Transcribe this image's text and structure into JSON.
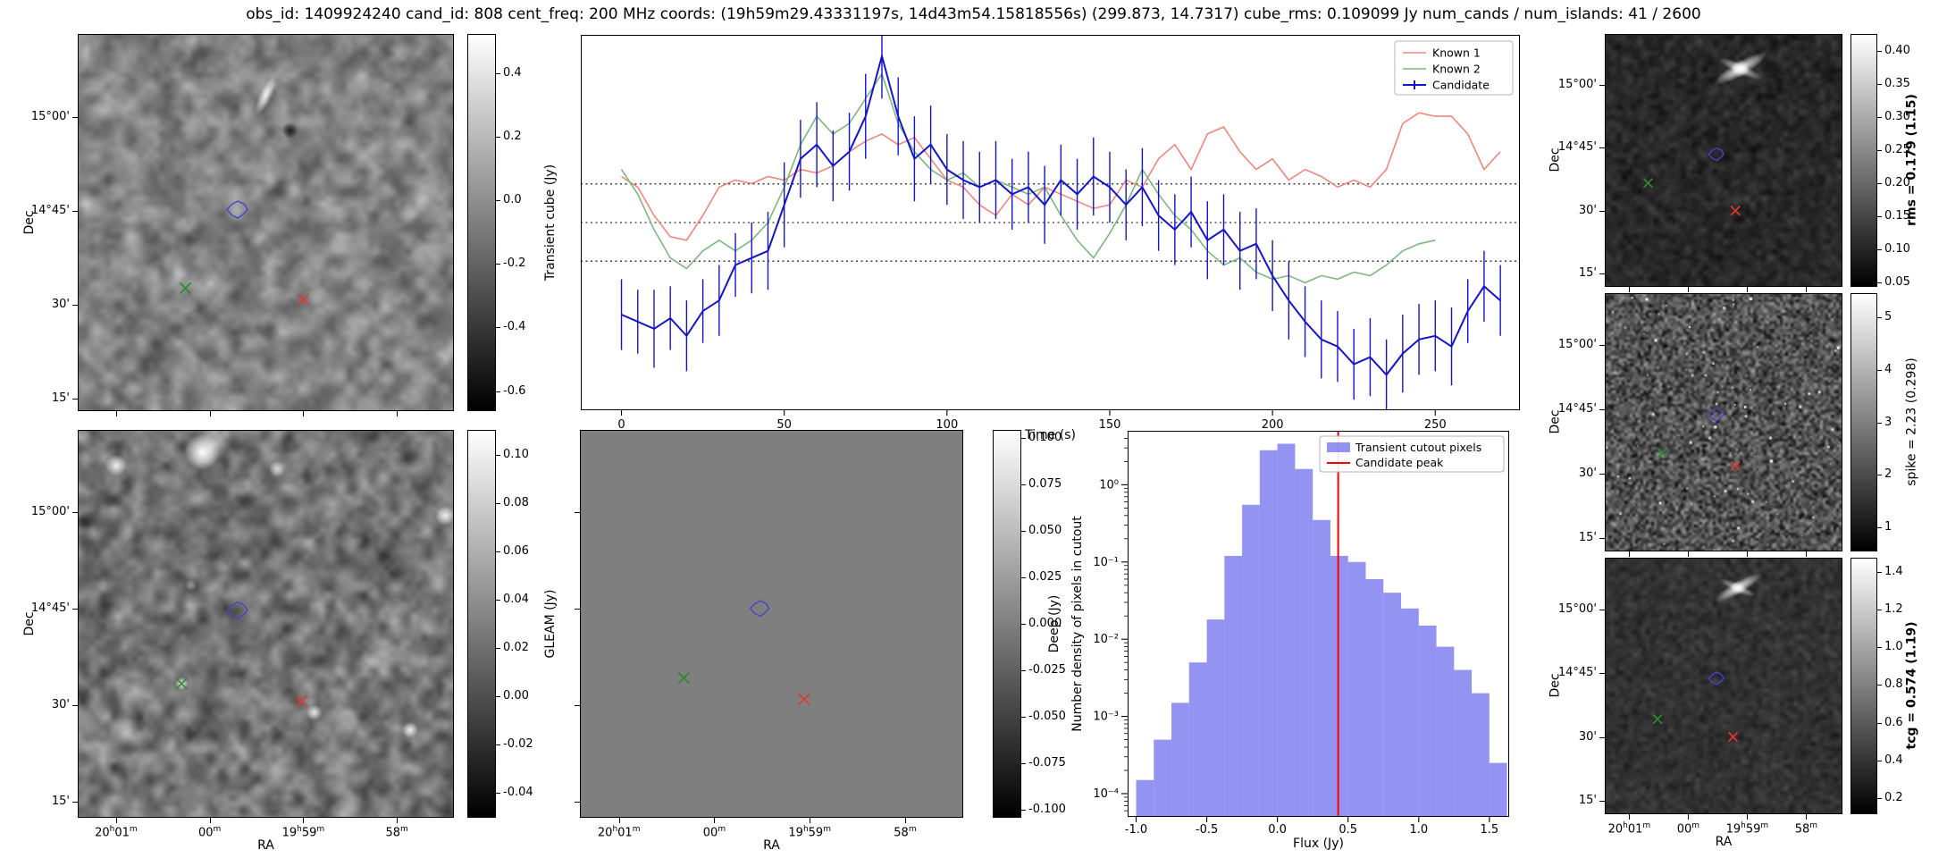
{
  "title": "obs_id: 1409924240 cand_id: 808 cent_freq: 200 MHz coords: (19h59m29.43331197s, 14d43m54.15818556s) (299.873, 14.7317) cube_rms: 0.109099 Jy num_cands / num_islands: 41 / 2600",
  "axes": {
    "dec_label": "Dec",
    "ra_label": "RA",
    "dec_ticks": [
      "15°00'",
      "14°45'",
      "30'",
      "15'"
    ],
    "ra_ticks": [
      "20h01m",
      "00m",
      "19h59m",
      "58m"
    ],
    "ra_fracs": [
      0.1,
      0.35,
      0.6,
      0.85
    ]
  },
  "colors": {
    "known1": "#f2867c",
    "known2": "#7cb87c",
    "candidate": "#1414cc",
    "hist_fill": "#7878ee",
    "peak_line": "#ff0000",
    "contour": "#4444cc",
    "marker_green": "#2e8b2e",
    "marker_red": "#e03a30",
    "deep_flat": "#7f7f7f"
  },
  "panels": {
    "transient": {
      "colorbar_label": "Transient cube (Jy)",
      "colorbar_range": [
        0.52,
        -0.66
      ],
      "colorbar_ticks": [
        "0.4",
        "0.2",
        "0.0",
        "-0.2",
        "-0.4",
        "-0.6"
      ],
      "markers": {
        "contour": [
          0.425,
          0.465
        ],
        "known2": [
          0.285,
          0.675
        ],
        "known1": [
          0.6,
          0.705
        ]
      }
    },
    "gleam": {
      "colorbar_label": "GLEAM (Jy)",
      "colorbar_range": [
        0.11,
        -0.05
      ],
      "colorbar_ticks": [
        "0.10",
        "0.08",
        "0.06",
        "0.04",
        "0.02",
        "0.00",
        "-0.02",
        "-0.04"
      ],
      "markers": {
        "contour": [
          0.425,
          0.465
        ],
        "known2": [
          0.275,
          0.655
        ],
        "known1": [
          0.595,
          0.7
        ]
      }
    },
    "deep": {
      "colorbar_label": "Deep (Jy)",
      "colorbar_range": [
        0.104,
        -0.104
      ],
      "colorbar_ticks": [
        "0.100",
        "0.075",
        "0.050",
        "0.025",
        "0.000",
        "-0.025",
        "-0.050",
        "-0.075",
        "-0.100"
      ],
      "markers": {
        "contour": [
          0.47,
          0.46
        ],
        "known2": [
          0.27,
          0.64
        ],
        "known1": [
          0.585,
          0.695
        ]
      }
    },
    "rms": {
      "colorbar_label": "rms = 0.179 (1.15)",
      "colorbar_range": [
        0.425,
        0.045
      ],
      "colorbar_ticks": [
        "0.40",
        "0.35",
        "0.30",
        "0.25",
        "0.20",
        "0.15",
        "0.10",
        "0.05"
      ],
      "markers": {
        "contour": [
          0.47,
          0.475
        ],
        "known2": [
          0.18,
          0.59
        ],
        "known1": [
          0.55,
          0.7
        ]
      }
    },
    "spike": {
      "colorbar_label": "spike = 2.23 (0.298)",
      "colorbar_range": [
        5.45,
        0.55
      ],
      "colorbar_ticks": [
        "5",
        "4",
        "3",
        "2",
        "1"
      ],
      "markers": {
        "contour": [
          0.47,
          0.47
        ],
        "known2": [
          0.24,
          0.62
        ],
        "known1": [
          0.55,
          0.67
        ]
      }
    },
    "tcg": {
      "colorbar_label": "tcg = 0.574 (1.19)",
      "colorbar_range": [
        1.47,
        0.12
      ],
      "colorbar_ticks": [
        "1.4",
        "1.2",
        "1.0",
        "0.8",
        "0.6",
        "0.4",
        "0.2"
      ],
      "markers": {
        "contour": [
          0.47,
          0.47
        ],
        "known2": [
          0.22,
          0.63
        ],
        "known1": [
          0.54,
          0.7
        ]
      }
    }
  },
  "chart_data": [
    {
      "id": "lightcurve",
      "type": "line",
      "xlabel": "Time (s)",
      "ylabel": "",
      "xlim": [
        -12.5,
        276
      ],
      "ylim": [
        -0.53,
        0.53
      ],
      "x_ticks": [
        0,
        50,
        100,
        150,
        200,
        250
      ],
      "x_tick_labels": [
        "0",
        "50",
        "100",
        "150",
        "200",
        "250"
      ],
      "hlines": [
        0.109099,
        0,
        -0.109099
      ],
      "legend_position": "upper right",
      "series": [
        {
          "name": "Known 1",
          "color": "#f2867c",
          "x": [
            0,
            5,
            10,
            15,
            20,
            25,
            30,
            35,
            40,
            45,
            50,
            55,
            60,
            65,
            70,
            75,
            80,
            85,
            90,
            95,
            100,
            105,
            110,
            115,
            120,
            125,
            130,
            135,
            140,
            145,
            150,
            155,
            160,
            165,
            170,
            175,
            180,
            185,
            190,
            195,
            200,
            205,
            210,
            215,
            220,
            225,
            230,
            235,
            240,
            245,
            250,
            255,
            260,
            265,
            270
          ],
          "values": [
            0.13,
            0.1,
            0.02,
            -0.04,
            -0.05,
            0.02,
            0.1,
            0.12,
            0.11,
            0.13,
            0.12,
            0.15,
            0.14,
            0.16,
            0.2,
            0.23,
            0.25,
            0.22,
            0.24,
            0.18,
            0.12,
            0.1,
            0.05,
            0.02,
            0.08,
            0.05,
            0.1,
            0.08,
            0.06,
            0.04,
            0.05,
            0.12,
            0.1,
            0.18,
            0.22,
            0.15,
            0.25,
            0.27,
            0.2,
            0.15,
            0.18,
            0.12,
            0.15,
            0.13,
            0.1,
            0.12,
            0.1,
            0.15,
            0.28,
            0.31,
            0.3,
            0.3,
            0.25,
            0.15,
            0.2
          ]
        },
        {
          "name": "Known 2",
          "color": "#7cb87c",
          "x": [
            0,
            5,
            10,
            15,
            20,
            25,
            30,
            35,
            40,
            45,
            50,
            55,
            60,
            65,
            70,
            75,
            80,
            85,
            90,
            95,
            100,
            105,
            110,
            115,
            120,
            125,
            130,
            135,
            140,
            145,
            150,
            155,
            160,
            165,
            170,
            175,
            180,
            185,
            190,
            195,
            200,
            205,
            210,
            215,
            220,
            225,
            230,
            235,
            240,
            245,
            250
          ],
          "values": [
            0.15,
            0.08,
            -0.02,
            -0.1,
            -0.13,
            -0.08,
            -0.05,
            -0.08,
            -0.05,
            0.0,
            0.1,
            0.22,
            0.3,
            0.25,
            0.28,
            0.35,
            0.42,
            0.28,
            0.2,
            0.15,
            0.12,
            0.14,
            0.1,
            0.12,
            0.1,
            0.08,
            0.1,
            0.02,
            -0.05,
            -0.1,
            -0.03,
            0.05,
            0.15,
            0.08,
            0.02,
            -0.02,
            -0.08,
            -0.12,
            -0.1,
            -0.14,
            -0.16,
            -0.15,
            -0.17,
            -0.15,
            -0.16,
            -0.14,
            -0.15,
            -0.12,
            -0.08,
            -0.06,
            -0.05
          ]
        },
        {
          "name": "Candidate",
          "color": "#1414cc",
          "x": [
            0,
            5,
            10,
            15,
            20,
            25,
            30,
            35,
            40,
            45,
            50,
            55,
            60,
            65,
            70,
            75,
            80,
            85,
            90,
            95,
            100,
            105,
            110,
            115,
            120,
            125,
            130,
            135,
            140,
            145,
            150,
            155,
            160,
            165,
            170,
            175,
            180,
            185,
            190,
            195,
            200,
            205,
            210,
            215,
            220,
            225,
            230,
            235,
            240,
            245,
            250,
            255,
            260,
            265,
            270
          ],
          "values": [
            -0.26,
            -0.28,
            -0.3,
            -0.27,
            -0.32,
            -0.25,
            -0.22,
            -0.12,
            -0.1,
            -0.08,
            0.05,
            0.18,
            0.22,
            0.16,
            0.2,
            0.3,
            0.47,
            0.3,
            0.18,
            0.22,
            0.15,
            0.12,
            0.1,
            0.12,
            0.08,
            0.1,
            0.05,
            0.12,
            0.08,
            0.13,
            0.1,
            0.05,
            0.1,
            0.02,
            -0.02,
            0.03,
            -0.05,
            -0.02,
            -0.08,
            -0.06,
            -0.15,
            -0.22,
            -0.28,
            -0.33,
            -0.35,
            -0.4,
            -0.38,
            -0.43,
            -0.37,
            -0.33,
            -0.32,
            -0.35,
            -0.25,
            -0.18,
            -0.22
          ],
          "errors": [
            0.1,
            0.09,
            0.11,
            0.09,
            0.1,
            0.09,
            0.1,
            0.09,
            0.1,
            0.11,
            0.12,
            0.11,
            0.12,
            0.1,
            0.11,
            0.12,
            0.12,
            0.11,
            0.12,
            0.11,
            0.1,
            0.11,
            0.1,
            0.11,
            0.1,
            0.1,
            0.11,
            0.1,
            0.1,
            0.11,
            0.1,
            0.1,
            0.11,
            0.1,
            0.1,
            0.1,
            0.11,
            0.1,
            0.11,
            0.1,
            0.1,
            0.11,
            0.1,
            0.11,
            0.1,
            0.1,
            0.11,
            0.1,
            0.11,
            0.1,
            0.1,
            0.11,
            0.09,
            0.1,
            0.1
          ]
        }
      ]
    },
    {
      "id": "histogram",
      "type": "bar",
      "xlabel": "Flux (Jy)",
      "ylabel": "Number density of pixels in cutout",
      "xlim": [
        -1.06,
        1.64
      ],
      "ylim": [
        5e-05,
        5
      ],
      "ylog": true,
      "x_ticks": [
        -1.0,
        -0.5,
        0.0,
        0.5,
        1.0,
        1.5
      ],
      "x_tick_labels": [
        "-1.0",
        "-0.5",
        "0.0",
        "0.5",
        "1.0",
        "1.5"
      ],
      "y_ticks": [
        {
          "label": "10⁰",
          "v": 1
        },
        {
          "label": "10⁻¹",
          "v": 0.1
        },
        {
          "label": "10⁻²",
          "v": 0.01
        },
        {
          "label": "10⁻³",
          "v": 0.001
        },
        {
          "label": "10⁻⁴",
          "v": 0.0001
        }
      ],
      "bin_edges": [
        -1.0,
        -0.875,
        -0.75,
        -0.625,
        -0.5,
        -0.375,
        -0.25,
        -0.125,
        0.0,
        0.125,
        0.25,
        0.375,
        0.5,
        0.625,
        0.75,
        0.875,
        1.0,
        1.125,
        1.25,
        1.375,
        1.5,
        1.625
      ],
      "densities": [
        0.00015,
        0.0005,
        0.0015,
        0.005,
        0.018,
        0.12,
        0.55,
        2.8,
        3.4,
        1.6,
        0.35,
        0.12,
        0.1,
        0.06,
        0.04,
        0.025,
        0.015,
        0.008,
        0.004,
        0.002,
        0.00025
      ],
      "vline": 0.43,
      "legend": [
        {
          "label": "Transient cutout pixels",
          "swatch": "patch"
        },
        {
          "label": "Candidate peak",
          "swatch": "line"
        }
      ]
    }
  ]
}
